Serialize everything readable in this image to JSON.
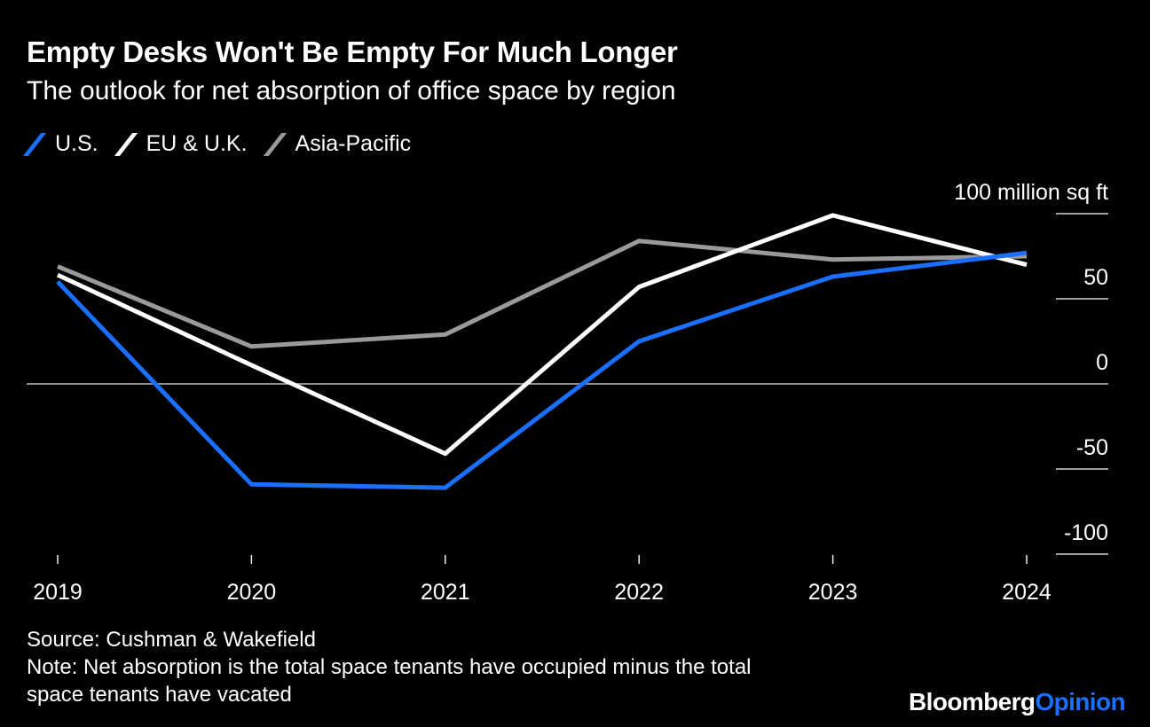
{
  "header": {
    "title": "Empty Desks Won't Be Empty For Much Longer",
    "subtitle": "The outlook for net absorption of office space by region"
  },
  "legend": {
    "items": [
      {
        "label": "U.S.",
        "color": "#1a6fff"
      },
      {
        "label": "EU & U.K.",
        "color": "#ffffff"
      },
      {
        "label": "Asia-Pacific",
        "color": "#9a9a9a"
      }
    ]
  },
  "chart_data": {
    "type": "line",
    "x": [
      "2019",
      "2020",
      "2021",
      "2022",
      "2023",
      "2024"
    ],
    "series": [
      {
        "name": "U.S.",
        "color": "#1a6fff",
        "values": [
          60,
          -59,
          -61,
          25,
          63,
          77
        ]
      },
      {
        "name": "EU & U.K.",
        "color": "#ffffff",
        "values": [
          64,
          11,
          -41,
          57,
          99,
          70
        ]
      },
      {
        "name": "Asia-Pacific",
        "color": "#9a9a9a",
        "values": [
          69,
          22,
          29,
          84,
          73,
          75
        ]
      }
    ],
    "y_ticks": [
      "100 million sq ft",
      "50",
      "0",
      "-50",
      "-100"
    ],
    "y_tick_values": [
      100,
      50,
      0,
      -50,
      -100
    ],
    "ylim": [
      -100,
      100
    ],
    "y_axis_side": "right",
    "zero_line": true
  },
  "footer": {
    "source": "Source: Cushman & Wakefield",
    "note_line1": "Note: Net absorption is the total space tenants have occupied minus the total",
    "note_line2": "space tenants have vacated",
    "brand_part1": "Bloomberg",
    "brand_part2": "Opinion"
  }
}
